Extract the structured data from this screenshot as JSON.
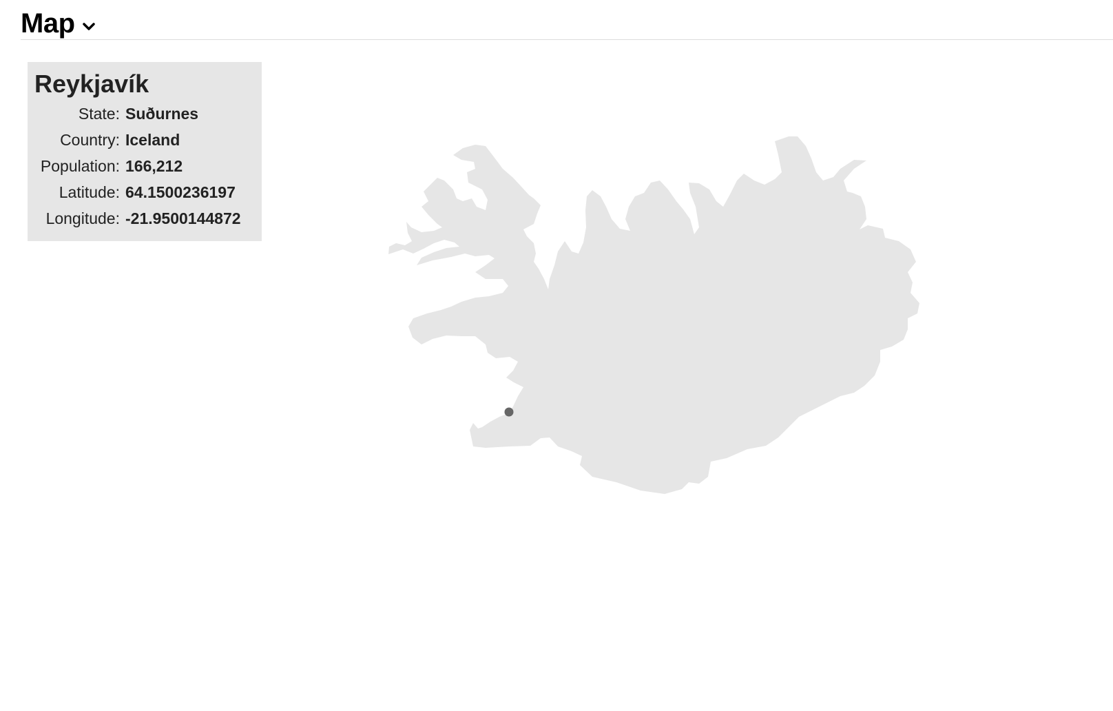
{
  "header": {
    "title": "Map",
    "dropdown_icon": "chevron-down-icon"
  },
  "tooltip": {
    "city": "Reykjavík",
    "fields": [
      {
        "label": "State:",
        "value": "Suðurnes"
      },
      {
        "label": "Country:",
        "value": "Iceland"
      },
      {
        "label": "Population:",
        "value": "166,212"
      },
      {
        "label": "Latitude:",
        "value": "64.1500236197"
      },
      {
        "label": "Longitude:",
        "value": "-21.9500144872"
      }
    ]
  },
  "map": {
    "region": "Iceland",
    "land_color": "#e6e6e6",
    "marker_color": "#666666",
    "marker": {
      "name": "Reykjavík",
      "latitude": 64.1500236197,
      "longitude": -21.9500144872
    }
  }
}
